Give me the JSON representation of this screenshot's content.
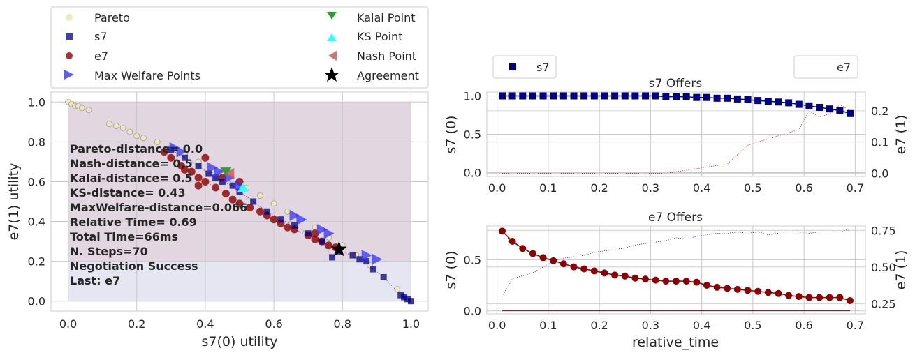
{
  "colors": {
    "pareto": "#eee8c4",
    "s7": "#000080",
    "e7": "#8b0000",
    "max_welfare": "#3333ff",
    "kalai": "#2e9e2e",
    "ks": "#33ffff",
    "nash": "#c06060",
    "agreement": "#000000",
    "region_top": "#e2d6e0",
    "region_bottom": "#e6e6f2",
    "grid": "#c8c8c8"
  },
  "legend": {
    "pareto": "Pareto",
    "s7": "s7",
    "e7": "e7",
    "max_welfare": "Max Welfare Points",
    "kalai": "Kalai Point",
    "ks": "KS Point",
    "nash": "Nash Point",
    "agreement": "Agreement"
  },
  "stats": [
    "Pareto-distance= 0.0",
    "Nash-distance=  0.5",
    "Kalai-distance=  0.5",
    "KS-distance= 0.43",
    "MaxWelfare-distance=0.066",
    "Relative Time= 0.69",
    "Total Time=66ms",
    "N. Steps=70",
    "Negotiation Success",
    "Last: e7"
  ],
  "chart_data": [
    {
      "type": "scatter",
      "xlabel": "s7(0) utility",
      "ylabel": "e7(1) utility",
      "xlim": [
        -0.05,
        1.05
      ],
      "ylim": [
        -0.05,
        1.05
      ],
      "xticks": [
        "0.0",
        "0.2",
        "0.4",
        "0.6",
        "0.8",
        "1.0"
      ],
      "yticks": [
        "0.0",
        "0.2",
        "0.4",
        "0.6",
        "0.8",
        "1.0"
      ],
      "grid": true,
      "legend_position": "above",
      "series": [
        {
          "name": "Pareto",
          "points": [
            [
              0.0,
              1.0
            ],
            [
              0.01,
              0.99
            ],
            [
              0.02,
              0.98
            ],
            [
              0.03,
              0.98
            ],
            [
              0.04,
              0.97
            ],
            [
              0.06,
              0.96
            ],
            [
              0.12,
              0.89
            ],
            [
              0.14,
              0.88
            ],
            [
              0.16,
              0.87
            ],
            [
              0.18,
              0.85
            ],
            [
              0.2,
              0.83
            ],
            [
              0.22,
              0.82
            ],
            [
              0.26,
              0.8
            ],
            [
              0.3,
              0.77
            ],
            [
              0.34,
              0.74
            ],
            [
              0.38,
              0.7
            ],
            [
              0.42,
              0.66
            ],
            [
              0.45,
              0.64
            ],
            [
              0.5,
              0.6
            ],
            [
              0.52,
              0.57
            ],
            [
              0.56,
              0.53
            ],
            [
              0.6,
              0.49
            ],
            [
              0.64,
              0.45
            ],
            [
              0.68,
              0.41
            ],
            [
              0.72,
              0.37
            ],
            [
              0.76,
              0.32
            ],
            [
              0.8,
              0.28
            ],
            [
              0.84,
              0.23
            ],
            [
              0.88,
              0.18
            ],
            [
              0.92,
              0.12
            ],
            [
              0.96,
              0.06
            ],
            [
              1.0,
              0.0
            ]
          ]
        },
        {
          "name": "s7",
          "points": [
            [
              1.0,
              0.0
            ],
            [
              0.99,
              0.01
            ],
            [
              0.98,
              0.02
            ],
            [
              0.97,
              0.03
            ],
            [
              0.92,
              0.12
            ],
            [
              0.89,
              0.16
            ],
            [
              0.87,
              0.2
            ],
            [
              0.85,
              0.21
            ],
            [
              0.83,
              0.23
            ],
            [
              0.79,
              0.25
            ],
            [
              0.77,
              0.22
            ],
            [
              0.74,
              0.3
            ],
            [
              0.7,
              0.34
            ],
            [
              0.66,
              0.38
            ],
            [
              0.62,
              0.41
            ],
            [
              0.58,
              0.45
            ],
            [
              0.54,
              0.5
            ],
            [
              0.5,
              0.55
            ],
            [
              0.48,
              0.58
            ],
            [
              0.45,
              0.6
            ],
            [
              0.43,
              0.62
            ],
            [
              0.41,
              0.64
            ],
            [
              0.38,
              0.68
            ],
            [
              0.34,
              0.72
            ],
            [
              0.3,
              0.76
            ]
          ]
        },
        {
          "name": "e7",
          "points": [
            [
              0.28,
              0.75
            ],
            [
              0.3,
              0.72
            ],
            [
              0.33,
              0.68
            ],
            [
              0.36,
              0.65
            ],
            [
              0.38,
              0.62
            ],
            [
              0.4,
              0.6
            ],
            [
              0.43,
              0.57
            ],
            [
              0.46,
              0.54
            ],
            [
              0.48,
              0.51
            ],
            [
              0.5,
              0.49
            ],
            [
              0.53,
              0.47
            ],
            [
              0.56,
              0.45
            ],
            [
              0.58,
              0.43
            ],
            [
              0.6,
              0.41
            ],
            [
              0.62,
              0.39
            ],
            [
              0.64,
              0.37
            ],
            [
              0.66,
              0.36
            ],
            [
              0.7,
              0.33
            ],
            [
              0.72,
              0.31
            ],
            [
              0.74,
              0.3
            ],
            [
              0.76,
              0.28
            ],
            [
              0.78,
              0.27
            ],
            [
              0.4,
              0.72
            ],
            [
              0.45,
              0.62
            ],
            [
              0.5,
              0.6
            ],
            [
              0.34,
              0.66
            ],
            [
              0.38,
              0.58
            ],
            [
              0.72,
              0.34
            ]
          ]
        },
        {
          "name": "Max Welfare Points",
          "points": [
            [
              0.31,
              0.77
            ],
            [
              0.33,
              0.75
            ],
            [
              0.42,
              0.67
            ],
            [
              0.44,
              0.65
            ],
            [
              0.47,
              0.62
            ],
            [
              0.5,
              0.58
            ],
            [
              0.66,
              0.43
            ],
            [
              0.68,
              0.41
            ],
            [
              0.74,
              0.36
            ],
            [
              0.76,
              0.34
            ],
            [
              0.87,
              0.23
            ],
            [
              0.9,
              0.21
            ]
          ]
        },
        {
          "name": "Kalai Point",
          "points": [
            [
              0.46,
              0.65
            ]
          ]
        },
        {
          "name": "KS Point",
          "points": [
            [
              0.51,
              0.57
            ]
          ]
        },
        {
          "name": "Nash Point",
          "points": [
            [
              0.47,
              0.64
            ]
          ]
        },
        {
          "name": "Agreement",
          "points": [
            [
              0.79,
              0.26
            ]
          ]
        }
      ]
    },
    {
      "type": "line",
      "title": "s7 Offers",
      "xlabel": "",
      "ylabel": "s7 (0)",
      "ylabel_right": "e7 (1)",
      "xlim": [
        -0.02,
        0.72
      ],
      "ylim": [
        -0.05,
        1.05
      ],
      "ylim_right": [
        -0.01,
        0.26
      ],
      "xticks": [
        "0.0",
        "0.1",
        "0.2",
        "0.3",
        "0.4",
        "0.5",
        "0.6",
        "0.7"
      ],
      "yticks": [
        "0.0",
        "0.5",
        "1.0"
      ],
      "yticks_right": [
        "0.0",
        "0.1",
        "0.2"
      ],
      "legend": [
        "s7",
        "e7"
      ],
      "x": [
        0.01,
        0.03,
        0.05,
        0.07,
        0.09,
        0.11,
        0.13,
        0.15,
        0.17,
        0.19,
        0.21,
        0.23,
        0.25,
        0.27,
        0.29,
        0.31,
        0.33,
        0.35,
        0.37,
        0.39,
        0.41,
        0.43,
        0.45,
        0.47,
        0.49,
        0.51,
        0.53,
        0.55,
        0.57,
        0.59,
        0.61,
        0.63,
        0.65,
        0.67,
        0.69
      ],
      "series": [
        {
          "name": "s7",
          "values": [
            1.0,
            1.0,
            1.0,
            1.0,
            1.0,
            1.0,
            1.0,
            1.0,
            1.0,
            1.0,
            1.0,
            1.0,
            1.0,
            1.0,
            1.0,
            1.0,
            0.99,
            0.99,
            0.99,
            0.98,
            0.98,
            0.97,
            0.97,
            0.96,
            0.95,
            0.94,
            0.93,
            0.92,
            0.91,
            0.89,
            0.87,
            0.85,
            0.83,
            0.81,
            0.77
          ]
        },
        {
          "name": "e7",
          "axis": "right",
          "values": [
            0.0,
            0.0,
            0.0,
            0.0,
            0.0,
            0.0,
            0.0,
            0.0,
            0.0,
            0.0,
            0.0,
            0.0,
            0.0,
            0.0,
            0.0,
            0.0,
            0.0,
            0.005,
            0.01,
            0.015,
            0.02,
            0.025,
            0.03,
            0.06,
            0.09,
            0.1,
            0.11,
            0.12,
            0.13,
            0.14,
            0.2,
            0.18,
            0.19,
            0.22,
            0.2
          ]
        }
      ]
    },
    {
      "type": "line",
      "title": "e7 Offers",
      "xlabel": "relative_time",
      "ylabel": "s7 (0)",
      "ylabel_right": "e7 (1)",
      "xlim": [
        -0.02,
        0.72
      ],
      "ylim": [
        -0.03,
        0.83
      ],
      "ylim_right": [
        0.18,
        0.78
      ],
      "xticks": [
        "0.0",
        "0.1",
        "0.2",
        "0.3",
        "0.4",
        "0.5",
        "0.6",
        "0.7"
      ],
      "yticks": [
        "0.0",
        "0.5"
      ],
      "yticks_right": [
        "0.25",
        "0.50",
        "0.75"
      ],
      "x": [
        0.01,
        0.03,
        0.05,
        0.07,
        0.09,
        0.11,
        0.13,
        0.15,
        0.17,
        0.19,
        0.21,
        0.23,
        0.25,
        0.27,
        0.29,
        0.31,
        0.33,
        0.35,
        0.37,
        0.39,
        0.41,
        0.43,
        0.45,
        0.47,
        0.49,
        0.51,
        0.53,
        0.55,
        0.57,
        0.59,
        0.61,
        0.63,
        0.65,
        0.67,
        0.69
      ],
      "series": [
        {
          "name": "e7",
          "values": [
            0.78,
            0.68,
            0.61,
            0.56,
            0.52,
            0.49,
            0.46,
            0.43,
            0.41,
            0.39,
            0.37,
            0.35,
            0.34,
            0.32,
            0.31,
            0.3,
            0.29,
            0.29,
            0.29,
            0.28,
            0.25,
            0.23,
            0.22,
            0.21,
            0.2,
            0.19,
            0.18,
            0.17,
            0.15,
            0.14,
            0.13,
            0.13,
            0.13,
            0.13,
            0.1
          ]
        },
        {
          "name": "s7",
          "values": [
            0.0,
            0.0,
            0.0,
            0.0,
            0.0,
            0.0,
            0.0,
            0.0,
            0.0,
            0.0,
            0.0,
            0.0,
            0.0,
            0.0,
            0.0,
            0.0,
            0.0,
            0.0,
            0.0,
            0.0,
            0.0,
            0.0,
            0.0,
            0.0,
            0.0,
            0.0,
            0.0,
            0.0,
            0.0,
            0.0,
            0.0,
            0.0,
            0.0,
            0.0,
            0.0
          ]
        },
        {
          "name": "e7 (1)",
          "axis": "right",
          "values": [
            0.3,
            0.42,
            0.44,
            0.46,
            0.5,
            0.54,
            0.56,
            0.57,
            0.58,
            0.6,
            0.61,
            0.62,
            0.63,
            0.65,
            0.66,
            0.67,
            0.68,
            0.7,
            0.69,
            0.71,
            0.72,
            0.73,
            0.73,
            0.74,
            0.73,
            0.74,
            0.72,
            0.73,
            0.74,
            0.74,
            0.73,
            0.74,
            0.74,
            0.74,
            0.76
          ]
        }
      ]
    }
  ]
}
